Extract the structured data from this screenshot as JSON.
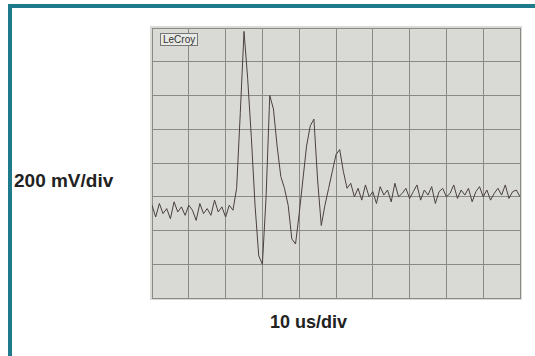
{
  "chart_data": {
    "type": "line",
    "annotation": "LeCroy",
    "x_label": "10 us/div",
    "y_label": "200 mV/div",
    "x": [
      0,
      1,
      2,
      3,
      4,
      5,
      6,
      7,
      8,
      9,
      10,
      11,
      12,
      13,
      14,
      15,
      16,
      17,
      18,
      19,
      20,
      21,
      22,
      23,
      24,
      25,
      26,
      27,
      28,
      29,
      30,
      31,
      32,
      33,
      34,
      35,
      36,
      37,
      38,
      39,
      40,
      41,
      42,
      43,
      44,
      45,
      46,
      47,
      48,
      49,
      50,
      51,
      52,
      53,
      54,
      55,
      56,
      57,
      58,
      59,
      60,
      61,
      62,
      63,
      64,
      65,
      66,
      67,
      68,
      69,
      70,
      71,
      72,
      73,
      74,
      75,
      76,
      77,
      78,
      79,
      80,
      81,
      82,
      83,
      84,
      85,
      86,
      87,
      88,
      89,
      90,
      91,
      92,
      93,
      94,
      95,
      96,
      97,
      98,
      99,
      100
    ],
    "values": [
      -250,
      -320,
      -240,
      -300,
      -270,
      -330,
      -230,
      -290,
      -260,
      -310,
      -250,
      -280,
      -340,
      -240,
      -300,
      -270,
      -310,
      -220,
      -290,
      -260,
      -320,
      -250,
      -280,
      -150,
      300,
      780,
      500,
      150,
      -250,
      -550,
      -600,
      -200,
      400,
      320,
      100,
      -80,
      -150,
      -250,
      -450,
      -480,
      -300,
      -100,
      100,
      220,
      260,
      -100,
      -370,
      -250,
      -150,
      -50,
      50,
      80,
      -50,
      -150,
      -120,
      -200,
      -150,
      -220,
      -130,
      -200,
      -170,
      -240,
      -140,
      -190,
      -160,
      -230,
      -120,
      -200,
      -180,
      -150,
      -210,
      -170,
      -130,
      -220,
      -160,
      -190,
      -140,
      -240,
      -170,
      -150,
      -200,
      -180,
      -130,
      -210,
      -160,
      -190,
      -150,
      -230,
      -170,
      -140,
      -200,
      -160,
      -220,
      -180,
      -150,
      -190,
      -130,
      -210,
      -170,
      -160,
      -200
    ],
    "color": "#4a4040",
    "xlim": [
      0,
      100
    ],
    "xticks": [
      0,
      10,
      20,
      30,
      40,
      50,
      60,
      70,
      80,
      90,
      100
    ],
    "ylim": [
      -800,
      800
    ],
    "yticks": [
      -800,
      -600,
      -400,
      -200,
      0,
      200,
      400,
      600,
      800
    ],
    "grid": true,
    "tick_labels": false
  }
}
